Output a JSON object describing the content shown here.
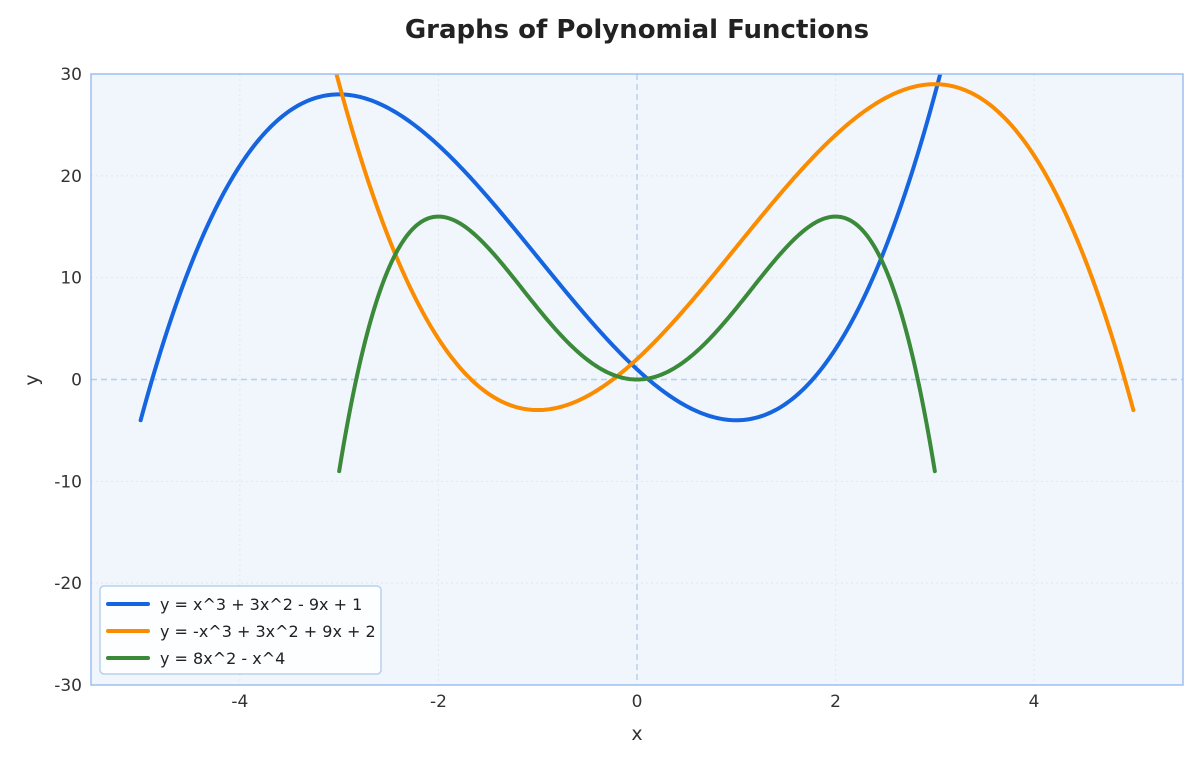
{
  "chart_data": {
    "type": "line",
    "title": "Graphs of Polynomial Functions",
    "xlabel": "x",
    "ylabel": "y",
    "xlim": [
      -5.5,
      5.5
    ],
    "ylim": [
      -30,
      30
    ],
    "x_ticks": [
      -4,
      -2,
      0,
      2,
      4
    ],
    "y_ticks": [
      -30,
      -20,
      -10,
      0,
      10,
      20,
      30
    ],
    "grid": true,
    "legend_position": "lower-left",
    "background_color": "#f0f6fc",
    "frame_color": "#9dbff0",
    "series": [
      {
        "name": "y = x^3 + 3x^2 - 9x + 1",
        "color": "#1565e0",
        "coefficients": [
          1,
          -9,
          3,
          1
        ],
        "domain": [
          -5,
          5
        ],
        "x": [
          -5,
          -4,
          -3,
          -2,
          -1,
          0,
          1,
          2,
          3
        ],
        "y": [
          -4,
          21,
          28,
          23,
          12,
          1,
          -4,
          3,
          28
        ]
      },
      {
        "name": "y = -x^3 + 3x^2 + 9x + 2",
        "color": "#fb8c00",
        "coefficients": [
          2,
          9,
          3,
          -1
        ],
        "domain": [
          -5,
          5
        ],
        "x": [
          -3,
          -2,
          -1,
          0,
          1,
          2,
          3,
          4,
          5
        ],
        "y": [
          29,
          4,
          -3,
          2,
          13,
          24,
          29,
          22,
          -3
        ]
      },
      {
        "name": "y = 8x^2 - x^4",
        "color": "#3a8a3a",
        "coefficients": [
          0,
          0,
          8,
          0,
          -1
        ],
        "domain": [
          -3,
          3
        ],
        "x": [
          -3,
          -2,
          -1,
          0,
          1,
          2,
          3
        ],
        "y": [
          -9,
          16,
          7,
          0,
          7,
          16,
          -9
        ]
      }
    ]
  }
}
